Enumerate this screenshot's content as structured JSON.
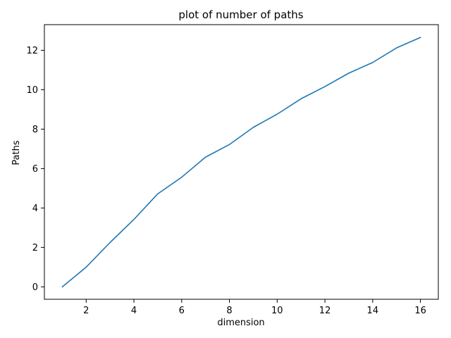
{
  "chart_data": {
    "type": "line",
    "title": "plot of number of paths",
    "xlabel": "dimension",
    "ylabel": "Paths",
    "xlim": [
      0.25,
      16.75
    ],
    "ylim": [
      -0.63,
      13.3
    ],
    "xticks": [
      2,
      4,
      6,
      8,
      10,
      12,
      14,
      16
    ],
    "yticks": [
      0,
      2,
      4,
      6,
      8,
      10,
      12
    ],
    "grid": false,
    "series": [
      {
        "color": "#1f77b4",
        "x": [
          1,
          2,
          3,
          4,
          5,
          6,
          7,
          8,
          9,
          10,
          11,
          12,
          13,
          14,
          15,
          16
        ],
        "y": [
          0.0,
          1.0,
          2.25,
          3.42,
          4.72,
          5.56,
          6.58,
          7.22,
          8.09,
          8.76,
          9.54,
          10.16,
          10.84,
          11.38,
          12.12,
          12.65
        ]
      }
    ]
  }
}
